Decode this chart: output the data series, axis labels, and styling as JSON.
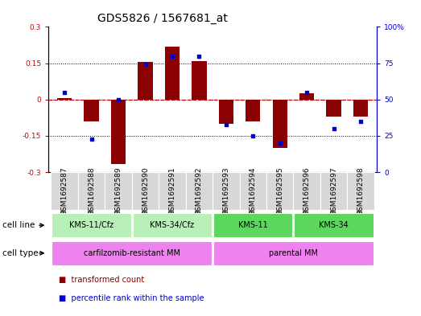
{
  "title": "GDS5826 / 1567681_at",
  "samples": [
    "GSM1692587",
    "GSM1692588",
    "GSM1692589",
    "GSM1692590",
    "GSM1692591",
    "GSM1692592",
    "GSM1692593",
    "GSM1692594",
    "GSM1692595",
    "GSM1692596",
    "GSM1692597",
    "GSM1692598"
  ],
  "bar_values": [
    0.005,
    -0.09,
    -0.265,
    0.155,
    0.22,
    0.16,
    -0.1,
    -0.09,
    -0.2,
    0.025,
    -0.07,
    -0.07
  ],
  "dot_values": [
    55,
    23,
    50,
    74,
    80,
    80,
    33,
    25,
    20,
    55,
    30,
    35
  ],
  "ylim_left": [
    -0.3,
    0.3
  ],
  "ylim_right": [
    0,
    100
  ],
  "yticks_left": [
    -0.3,
    -0.15,
    0.0,
    0.15,
    0.3
  ],
  "yticks_right": [
    0,
    25,
    50,
    75,
    100
  ],
  "ytick_labels_left": [
    "-0.3",
    "-0.15",
    "0",
    "0.15",
    "0.3"
  ],
  "ytick_labels_right": [
    "0",
    "25",
    "50",
    "75",
    "100%"
  ],
  "bar_color": "#8B0000",
  "dot_color": "#0000CD",
  "zero_line_color": "#CC0000",
  "cell_line_groups": [
    {
      "label": "KMS-11/Cfz",
      "start": 0,
      "end": 2,
      "color": "#b8f0b8"
    },
    {
      "label": "KMS-34/Cfz",
      "start": 3,
      "end": 5,
      "color": "#b8f0b8"
    },
    {
      "label": "KMS-11",
      "start": 6,
      "end": 8,
      "color": "#5cd65c"
    },
    {
      "label": "KMS-34",
      "start": 9,
      "end": 11,
      "color": "#5cd65c"
    }
  ],
  "cell_type_groups": [
    {
      "label": "carfilzomib-resistant MM",
      "start": 0,
      "end": 5,
      "color": "#EE82EE"
    },
    {
      "label": "parental MM",
      "start": 6,
      "end": 11,
      "color": "#EE82EE"
    }
  ],
  "legend_items": [
    {
      "label": "transformed count",
      "color": "#8B0000"
    },
    {
      "label": "percentile rank within the sample",
      "color": "#0000CD"
    }
  ],
  "cell_line_label": "cell line",
  "cell_type_label": "cell type",
  "bar_width": 0.55,
  "title_fontsize": 10,
  "tick_fontsize": 6.5,
  "label_fontsize": 7.5
}
